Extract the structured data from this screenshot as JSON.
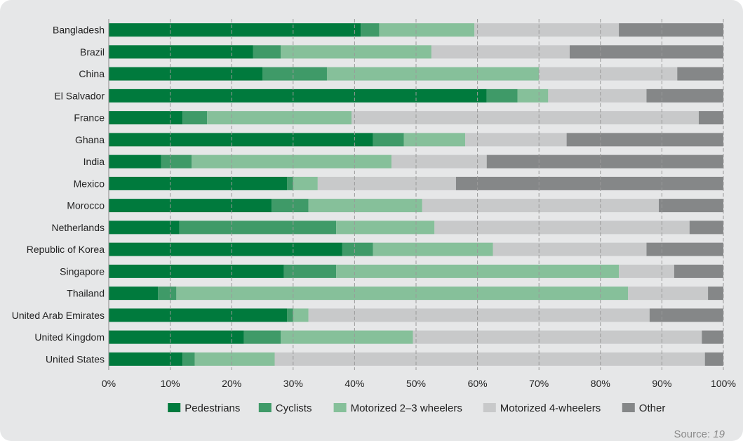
{
  "chart_data": {
    "type": "bar",
    "orientation": "horizontal",
    "stacked": true,
    "categories": [
      "Bangladesh",
      "Brazil",
      "China",
      "El Salvador",
      "France",
      "Ghana",
      "India",
      "Mexico",
      "Morocco",
      "Netherlands",
      "Republic of Korea",
      "Singapore",
      "Thailand",
      "United Arab Emirates",
      "United Kingdom",
      "United States"
    ],
    "series": [
      {
        "name": "Pedestrians",
        "color": "#007a3d",
        "values": [
          41,
          23.5,
          25,
          61.5,
          12,
          43,
          8.5,
          29,
          26.5,
          11.5,
          38,
          28.5,
          8,
          29,
          22,
          12
        ]
      },
      {
        "name": "Cyclists",
        "color": "#3f9a68",
        "values": [
          3,
          4.5,
          10.5,
          5,
          4,
          5,
          5,
          1,
          6,
          25.5,
          5,
          8.5,
          3,
          1,
          6,
          2
        ]
      },
      {
        "name": "Motorized 2–3 wheelers",
        "color": "#86c09a",
        "values": [
          15.5,
          24.5,
          34.5,
          5,
          23.5,
          10,
          32.5,
          4,
          18.5,
          16,
          19.5,
          46,
          73.5,
          2.5,
          21.5,
          13
        ]
      },
      {
        "name": "Motorized 4-wheelers",
        "color": "#c8c9ca",
        "values": [
          23.5,
          22.5,
          22.5,
          16,
          56.5,
          16.5,
          15.5,
          22.5,
          38.5,
          41.5,
          25,
          9,
          13,
          55.5,
          47,
          70
        ]
      },
      {
        "name": "Other",
        "color": "#858788",
        "values": [
          17,
          25,
          7.5,
          12.5,
          4,
          25.5,
          38.5,
          43.5,
          10.5,
          5.5,
          12.5,
          8,
          2.5,
          12,
          3.5,
          3
        ]
      }
    ],
    "xlim": [
      0,
      100
    ],
    "x_ticks": [
      "0%",
      "10%",
      "20%",
      "30%",
      "40%",
      "50%",
      "60%",
      "70%",
      "80%",
      "90%",
      "100%"
    ],
    "grid": "vertical",
    "legend_position": "bottom"
  },
  "source": {
    "label": "Source: ",
    "ref": "19"
  }
}
